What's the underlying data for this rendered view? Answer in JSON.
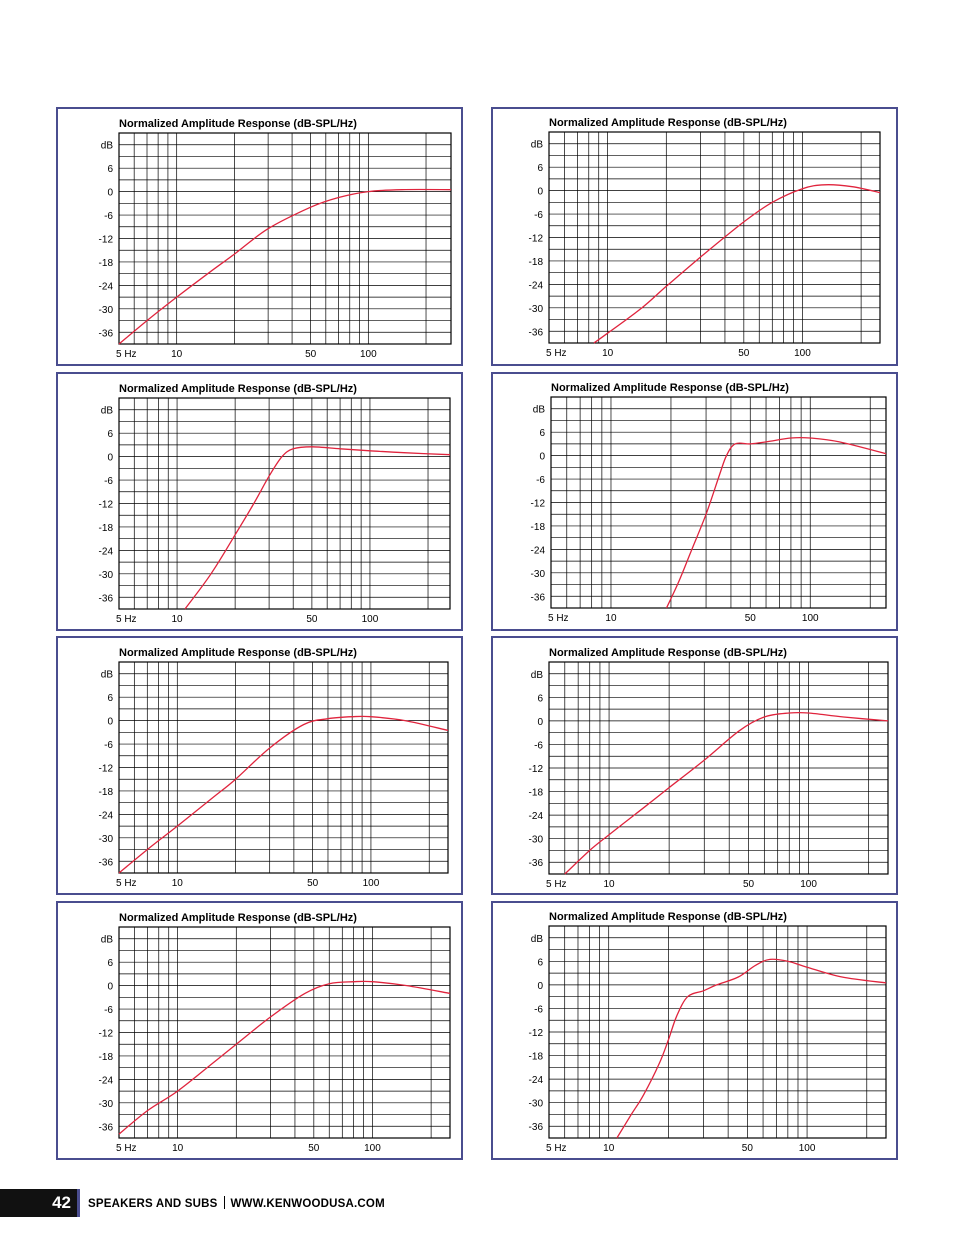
{
  "footer": {
    "page_number": "42",
    "section": "SPEAKERS AND SUBS",
    "website": "WWW.KENWOODUSA.COM"
  },
  "colors": {
    "curve": "#e0243d",
    "border": "#4a4d8f",
    "grid": "#000000"
  },
  "chart_data": [
    {
      "type": "line",
      "title": "Normalized Amplitude Response (dB-SPL/Hz)",
      "ylabel": "dB",
      "yticks": [
        "6",
        "0",
        "-6",
        "-12",
        "-18",
        "-24",
        "-30",
        "-36"
      ],
      "xticks": [
        "5 Hz",
        "10",
        "50",
        "100"
      ],
      "xscale": "log",
      "ylim": [
        -39,
        15
      ],
      "xlim": [
        5,
        270
      ],
      "series": [
        {
          "x": [
            5,
            7,
            10,
            15,
            20,
            30,
            50,
            70,
            100,
            150,
            270
          ],
          "y": [
            -39,
            -33,
            -27,
            -20.5,
            -16,
            -9.5,
            -4,
            -1.5,
            0,
            0.5,
            0.5
          ]
        }
      ]
    },
    {
      "type": "line",
      "title": "Normalized Amplitude Response (dB-SPL/Hz)",
      "ylabel": "dB",
      "yticks": [
        "6",
        "0",
        "-6",
        "-12",
        "-18",
        "-24",
        "-30",
        "-36"
      ],
      "xticks": [
        "5 Hz",
        "10",
        "50",
        "100"
      ],
      "xscale": "log",
      "ylim": [
        -39,
        15
      ],
      "xlim": [
        5,
        250
      ],
      "series": [
        {
          "x": [
            8.5,
            10,
            15,
            20,
            30,
            50,
            70,
            100,
            130,
            180,
            250
          ],
          "y": [
            -39,
            -36.5,
            -30,
            -24.5,
            -17,
            -8,
            -3,
            0.5,
            1.5,
            1,
            -0.5
          ]
        }
      ]
    },
    {
      "type": "line",
      "title": "Normalized Amplitude Response (dB-SPL/Hz)",
      "ylabel": "dB",
      "yticks": [
        "6",
        "0",
        "-6",
        "-12",
        "-18",
        "-24",
        "-30",
        "-36"
      ],
      "xticks": [
        "5 Hz",
        "10",
        "50",
        "100"
      ],
      "xscale": "log",
      "ylim": [
        -39,
        15
      ],
      "xlim": [
        5,
        260
      ],
      "series": [
        {
          "x": [
            11,
            15,
            20,
            25,
            30,
            35,
            40,
            50,
            70,
            100,
            150,
            260
          ],
          "y": [
            -39,
            -30,
            -20,
            -12,
            -5,
            0,
            2,
            2.5,
            2,
            1.5,
            1,
            0.5
          ]
        }
      ]
    },
    {
      "type": "line",
      "title": "Normalized Amplitude Response (dB-SPL/Hz)",
      "ylabel": "dB",
      "yticks": [
        "6",
        "0",
        "-6",
        "-12",
        "-18",
        "-24",
        "-30",
        "-36"
      ],
      "xticks": [
        "5 Hz",
        "10",
        "50",
        "100"
      ],
      "xscale": "log",
      "ylim": [
        -39,
        15
      ],
      "xlim": [
        5,
        240
      ],
      "series": [
        {
          "x": [
            19,
            22,
            25,
            30,
            35,
            38,
            42,
            50,
            60,
            80,
            100,
            140,
            240
          ],
          "y": [
            -39,
            -32,
            -25,
            -15,
            -5,
            0,
            3,
            3,
            3.5,
            4.5,
            4.5,
            3.5,
            0.5
          ]
        }
      ]
    },
    {
      "type": "line",
      "title": "Normalized Amplitude Response (dB-SPL/Hz)",
      "ylabel": "dB",
      "yticks": [
        "6",
        "0",
        "-6",
        "-12",
        "-18",
        "-24",
        "-30",
        "-36"
      ],
      "xticks": [
        "5 Hz",
        "10",
        "50",
        "100"
      ],
      "xscale": "log",
      "ylim": [
        -39,
        15
      ],
      "xlim": [
        5,
        250
      ],
      "series": [
        {
          "x": [
            5,
            7,
            10,
            15,
            20,
            30,
            45,
            60,
            80,
            100,
            150,
            250
          ],
          "y": [
            -39,
            -33,
            -27,
            -20,
            -15,
            -7,
            -1,
            0.5,
            1,
            1,
            0,
            -2.5
          ]
        }
      ]
    },
    {
      "type": "line",
      "title": "Normalized Amplitude Response (dB-SPL/Hz)",
      "ylabel": "dB",
      "yticks": [
        "6",
        "0",
        "-6",
        "-12",
        "-18",
        "-24",
        "-30",
        "-36"
      ],
      "xticks": [
        "5 Hz",
        "10",
        "50",
        "100"
      ],
      "xscale": "log",
      "ylim": [
        -39,
        15
      ],
      "xlim": [
        5,
        250
      ],
      "series": [
        {
          "x": [
            6,
            8,
            10,
            15,
            20,
            30,
            45,
            60,
            80,
            100,
            150,
            250
          ],
          "y": [
            -39,
            -33,
            -29,
            -22,
            -17,
            -10,
            -2.5,
            1,
            2,
            2,
            1,
            0
          ]
        }
      ]
    },
    {
      "type": "line",
      "title": "Normalized Amplitude Response (dB-SPL/Hz)",
      "ylabel": "dB",
      "yticks": [
        "6",
        "0",
        "-6",
        "-12",
        "-18",
        "-24",
        "-30",
        "-36"
      ],
      "xticks": [
        "5 Hz",
        "10",
        "50",
        "100"
      ],
      "xscale": "log",
      "ylim": [
        -39,
        15
      ],
      "xlim": [
        5,
        250
      ],
      "series": [
        {
          "x": [
            5,
            7,
            10,
            15,
            20,
            30,
            45,
            60,
            80,
            100,
            150,
            250
          ],
          "y": [
            -38,
            -32,
            -27,
            -20,
            -15,
            -8,
            -2,
            0.5,
            1,
            1,
            0,
            -2
          ]
        }
      ]
    },
    {
      "type": "line",
      "title": "Normalized Amplitude Response (dB-SPL/Hz)",
      "ylabel": "dB",
      "yticks": [
        "6",
        "0",
        "-6",
        "-12",
        "-18",
        "-24",
        "-30",
        "-36"
      ],
      "xticks": [
        "5 Hz",
        "10",
        "50",
        "100"
      ],
      "xscale": "log",
      "ylim": [
        -39,
        15
      ],
      "xlim": [
        5,
        250
      ],
      "series": [
        {
          "x": [
            11,
            13,
            15,
            18,
            20,
            22,
            25,
            30,
            35,
            45,
            55,
            65,
            80,
            100,
            150,
            250
          ],
          "y": [
            -39,
            -33,
            -28,
            -20,
            -14,
            -8,
            -3,
            -1.5,
            0,
            2,
            5,
            6.5,
            6,
            4.5,
            2,
            0.5
          ]
        }
      ]
    }
  ]
}
